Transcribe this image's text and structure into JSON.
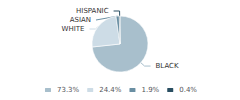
{
  "chart_data": {
    "type": "pie",
    "categories": [
      "BLACK",
      "WHITE",
      "ASIAN",
      "HISPANIC"
    ],
    "values": [
      73.3,
      24.4,
      1.9,
      0.4
    ],
    "value_labels": [
      "73.3%",
      "24.4%",
      "1.9%",
      "0.4%"
    ],
    "colors": [
      "#a8bfcc",
      "#cddce6",
      "#6a8fa3",
      "#2a4f62"
    ],
    "legend": "bottom"
  }
}
